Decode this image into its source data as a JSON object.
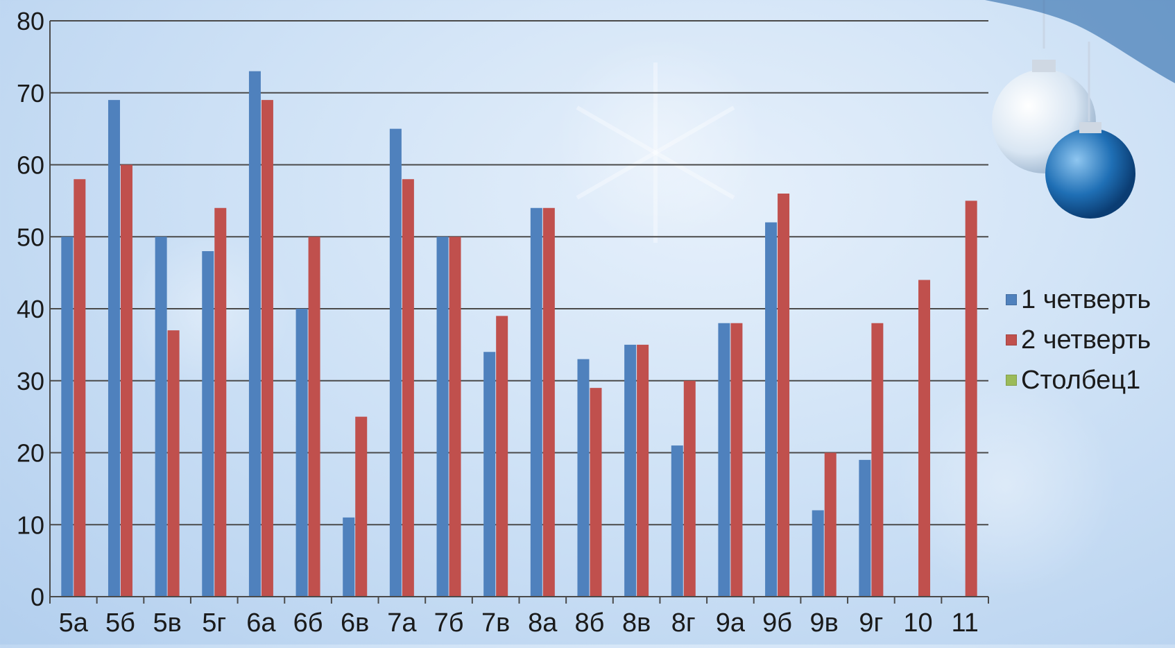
{
  "chart_data": {
    "type": "bar",
    "categories": [
      "5а",
      "5б",
      "5в",
      "5г",
      "6а",
      "6б",
      "6в",
      "7а",
      "7б",
      "7в",
      "8а",
      "8б",
      "8в",
      "8г",
      "9а",
      "9б",
      "9в",
      "9г",
      "10",
      "11"
    ],
    "series": [
      {
        "name": "1 четверть",
        "color": "#4f81bd",
        "values": [
          50,
          69,
          50,
          48,
          73,
          40,
          11,
          65,
          50,
          34,
          54,
          33,
          35,
          21,
          38,
          52,
          12,
          19,
          null,
          null
        ]
      },
      {
        "name": "2 четверть",
        "color": "#c0504d",
        "values": [
          58,
          60,
          37,
          54,
          69,
          50,
          25,
          58,
          50,
          39,
          54,
          29,
          35,
          30,
          38,
          56,
          20,
          38,
          44,
          55
        ]
      },
      {
        "name": "Столбец1",
        "color": "#9bbb59",
        "values": [
          null,
          null,
          null,
          null,
          null,
          null,
          null,
          null,
          null,
          null,
          null,
          null,
          null,
          null,
          null,
          null,
          null,
          null,
          null,
          null
        ]
      }
    ],
    "ylim": [
      0,
      80
    ],
    "yticks": [
      "0",
      "10",
      "20",
      "30",
      "40",
      "50",
      "60",
      "70",
      "80"
    ],
    "grid": true,
    "legend_position": "right"
  }
}
